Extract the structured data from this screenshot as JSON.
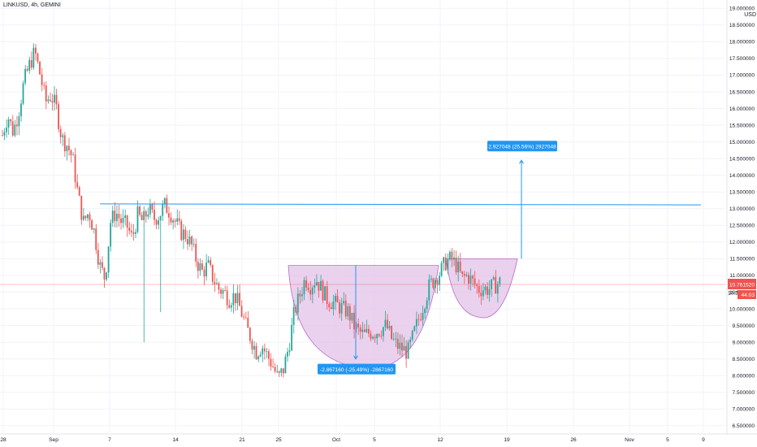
{
  "chart_data": {
    "type": "candlestick",
    "symbol_title": "LINKUSD, 4h, GEMINI",
    "currency": "USD",
    "y_ticks": [
      "19.000000",
      "18.500000",
      "18.000000",
      "17.500000",
      "17.000000",
      "16.500000",
      "16.000000",
      "15.500000",
      "15.000000",
      "14.500000",
      "14.000000",
      "13.500000",
      "13.000000",
      "12.500000",
      "12.000000",
      "11.500000",
      "11.000000",
      "10.500000",
      "10.000000",
      "9.500000",
      "9.000000",
      "8.500000",
      "8.000000",
      "7.500000",
      "7.000000",
      "6.500000"
    ],
    "y_tick_values": [
      19,
      18.5,
      18,
      17.5,
      17,
      16.5,
      16,
      15.5,
      15,
      14.5,
      14,
      13.5,
      13,
      12.5,
      12,
      11.5,
      11,
      10.5,
      10,
      9.5,
      9,
      8.5,
      8,
      7.5,
      7,
      6.5
    ],
    "ylim": [
      6.3,
      19.25
    ],
    "x_ticks": [
      "28",
      "Sep",
      "7",
      "14",
      "21",
      "25",
      "Oct",
      "5",
      "12",
      "19",
      "26",
      "Nov",
      "5",
      "9"
    ],
    "last_price_label": "10.761520",
    "countdown_label": "44:03",
    "partial_tick_label": "10.5",
    "colors": {
      "up": "#26a69a",
      "down": "#ef5350",
      "line": "#2196f3",
      "fill": "#e1bee7",
      "fill_stroke": "#ba68c8",
      "label_bg": "#2196f3",
      "price_bg": "#ef5350"
    },
    "price_path": [
      15.2,
      15.8,
      15.3,
      15.9,
      16.8,
      17.3,
      17.7,
      17.0,
      16.2,
      16.4,
      16.0,
      15.1,
      14.9,
      14.5,
      13.4,
      12.6,
      12.9,
      12.3,
      11.3,
      10.9,
      12.6,
      12.9,
      12.6,
      12.5,
      12.1,
      12.8,
      12.6,
      13.0,
      12.7,
      12.8,
      13.1,
      12.9,
      12.6,
      12.3,
      12.2,
      11.9,
      11.4,
      11.1,
      11.3,
      10.9,
      10.6,
      10.5,
      10.3,
      10.4,
      10.0,
      9.5,
      9.1,
      8.7,
      8.9,
      8.6,
      8.3,
      7.9,
      8.2,
      8.9,
      9.9,
      10.4,
      10.9,
      10.7,
      10.9,
      10.6,
      10.3,
      10.2,
      10.1,
      10.0,
      9.9,
      9.5,
      9.3,
      9.2,
      9.3,
      9.3,
      9.4,
      9.5,
      9.1,
      8.9,
      8.8,
      8.7,
      9.2,
      9.7,
      10.2,
      10.7,
      10.9,
      11.1,
      11.4,
      11.5,
      11.3,
      10.9,
      11.0,
      10.8,
      10.6,
      10.6,
      10.6,
      10.7,
      10.8
    ],
    "level_line": {
      "value": 13.15
    },
    "measure_down": {
      "from": 11.3,
      "to": 8.5,
      "label": "-2.867160 (-25.49%) -2867160"
    },
    "measure_up": {
      "from": 11.5,
      "to": 14.45,
      "label": "2.927048 (25.56%) 2927048"
    },
    "patterns": [
      {
        "name": "cup"
      },
      {
        "name": "handle"
      }
    ]
  }
}
